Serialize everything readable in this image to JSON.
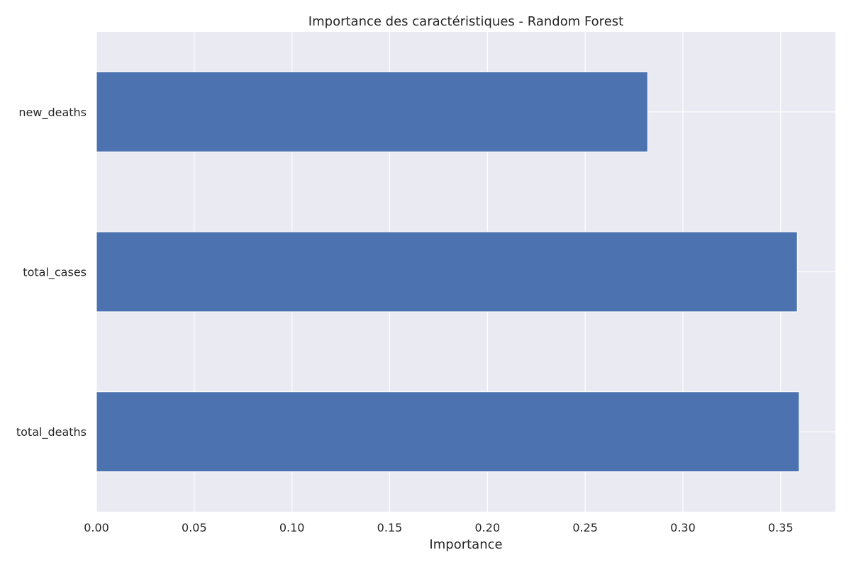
{
  "chart_data": {
    "type": "bar",
    "orientation": "horizontal",
    "title": "Importance des caractéristiques - Random Forest",
    "xlabel": "Importance",
    "ylabel": "",
    "categories": [
      "total_deaths",
      "total_cases",
      "new_deaths"
    ],
    "values": [
      0.3595,
      0.3585,
      0.282
    ],
    "xlim": [
      0,
      0.378
    ],
    "xticks": [
      0.0,
      0.05,
      0.1,
      0.15,
      0.2,
      0.25,
      0.3,
      0.35
    ],
    "xtick_labels": [
      "0.00",
      "0.05",
      "0.10",
      "0.15",
      "0.20",
      "0.25",
      "0.30",
      "0.35"
    ],
    "grid": true,
    "colors": {
      "bar": "#4c72b0",
      "background": "#eaeaf2",
      "grid": "#ffffff",
      "text": "#262626"
    }
  }
}
